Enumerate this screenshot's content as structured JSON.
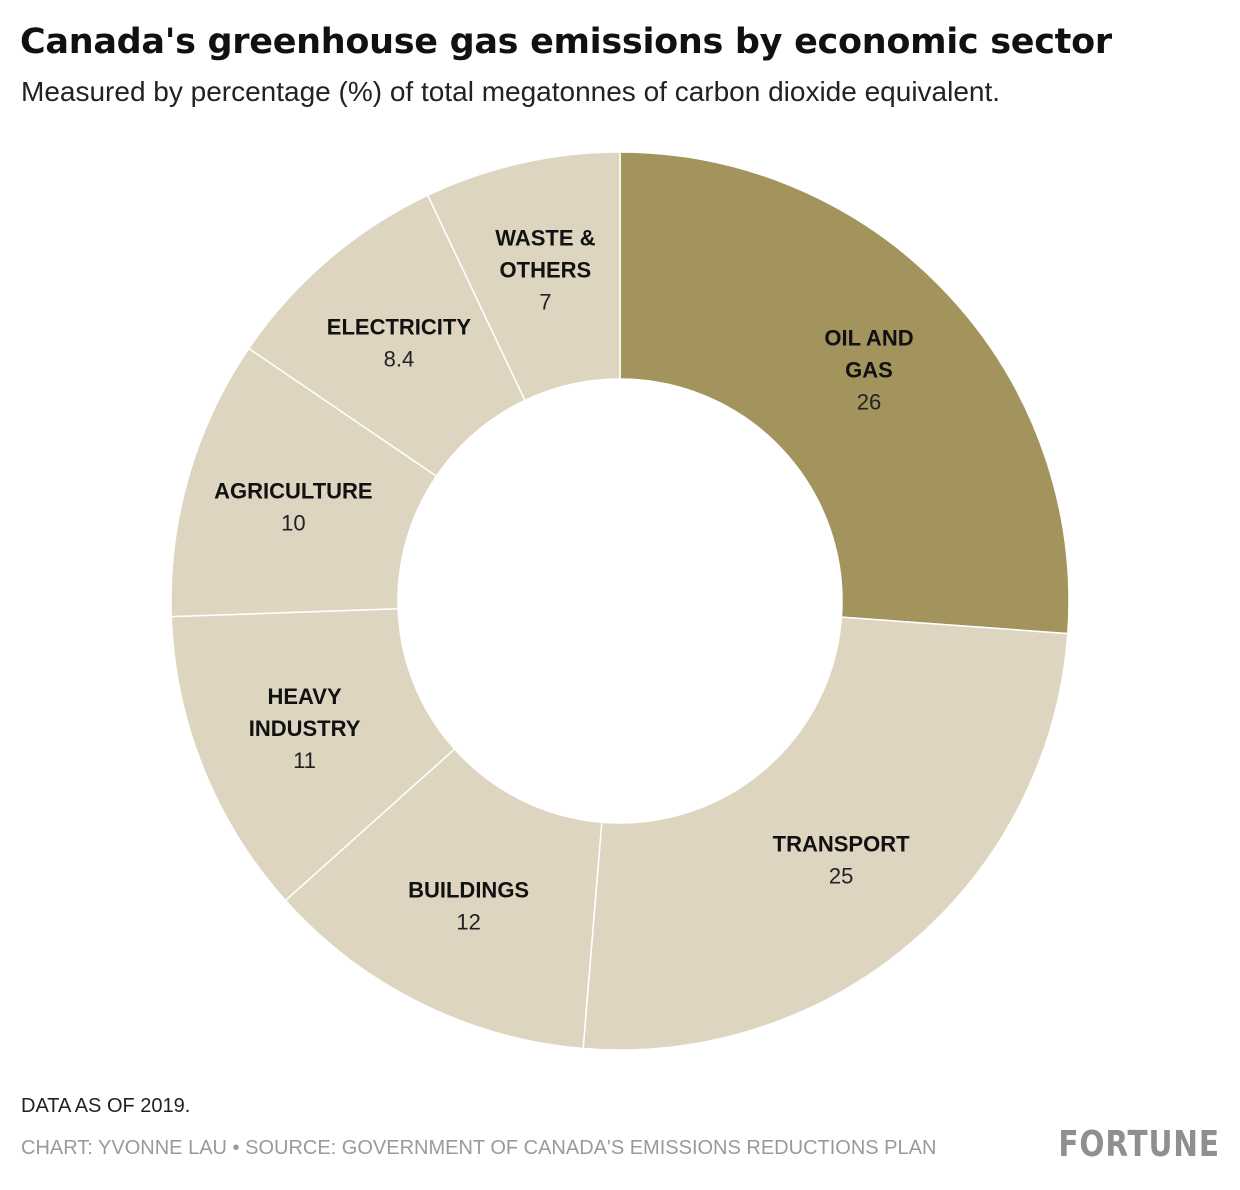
{
  "title": "Canada's greenhouse gas emissions by economic sector",
  "subtitle": "Measured by percentage (%) of total megatonnes of carbon dioxide equivalent.",
  "note": "DATA AS OF 2019.",
  "credit": "CHART: YVONNE LAU • SOURCE: GOVERNMENT OF CANADA'S EMISSIONS REDUCTIONS PLAN",
  "logo": "FORTUNE",
  "colors": {
    "highlight": "#a3935c",
    "base": "#ddd5bf",
    "logo": "#8f8f8f"
  },
  "chart_data": {
    "type": "pie",
    "donut": true,
    "start": "12 o'clock",
    "direction": "clockwise",
    "slices": [
      {
        "label": [
          "OIL AND",
          "GAS"
        ],
        "value": 26,
        "display": "26",
        "highlight": true
      },
      {
        "label": [
          "TRANSPORT"
        ],
        "value": 25,
        "display": "25",
        "highlight": false
      },
      {
        "label": [
          "BUILDINGS"
        ],
        "value": 12,
        "display": "12",
        "highlight": false
      },
      {
        "label": [
          "HEAVY",
          "INDUSTRY"
        ],
        "value": 11,
        "display": "11",
        "highlight": false
      },
      {
        "label": [
          "AGRICULTURE"
        ],
        "value": 10,
        "display": "10",
        "highlight": false
      },
      {
        "label": [
          "ELECTRICITY"
        ],
        "value": 8.4,
        "display": "8.4",
        "highlight": false
      },
      {
        "label": [
          "WASTE &",
          "OTHERS"
        ],
        "value": 7,
        "display": "7",
        "highlight": false
      }
    ]
  }
}
